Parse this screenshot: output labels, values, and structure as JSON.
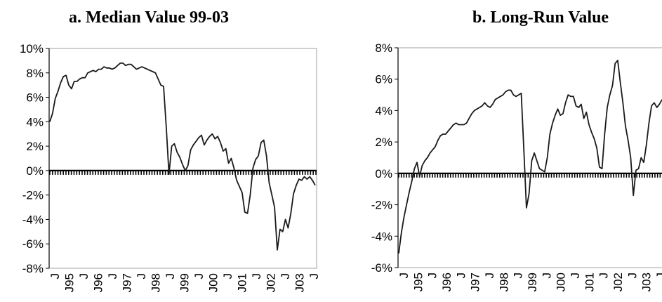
{
  "chart_data": [
    {
      "type": "line",
      "title": "a. Median Value 99-03",
      "xlabel": "",
      "ylabel": "",
      "ylim": [
        -8,
        10
      ],
      "yticks": [
        -8,
        -6,
        -4,
        -2,
        0,
        2,
        4,
        6,
        8,
        10
      ],
      "ytick_labels": [
        "-8%",
        "-6%",
        "-4%",
        "-2%",
        "0%",
        "2%",
        "4%",
        "6%",
        "8%",
        "10%"
      ],
      "xtick_labels": [
        "J",
        "J95",
        "J",
        "J96",
        "J",
        "J97",
        "J",
        "J98",
        "J",
        "J99",
        "J",
        "J00",
        "J",
        "J01",
        "J",
        "J02",
        "J",
        "J03",
        "J"
      ],
      "grid": false,
      "series": [
        {
          "values": [
            4.0,
            4.7,
            5.9,
            6.5,
            7.2,
            7.7,
            7.8,
            7.0,
            6.7,
            7.3,
            7.3,
            7.5,
            7.6,
            7.6,
            8.0,
            8.1,
            8.2,
            8.1,
            8.3,
            8.3,
            8.5,
            8.4,
            8.4,
            8.3,
            8.4,
            8.6,
            8.8,
            8.8,
            8.6,
            8.7,
            8.7,
            8.5,
            8.3,
            8.4,
            8.5,
            8.4,
            8.3,
            8.2,
            8.1,
            8.0,
            7.5,
            7.0,
            6.9,
            3.5,
            -0.3,
            2.0,
            2.2,
            1.5,
            1.1,
            0.5,
            0.0,
            0.4,
            1.7,
            2.1,
            2.4,
            2.7,
            2.9,
            2.1,
            2.5,
            2.8,
            3.0,
            2.6,
            2.8,
            2.3,
            1.6,
            1.8,
            0.6,
            1.0,
            0.2,
            -0.8,
            -1.3,
            -1.8,
            -3.4,
            -3.5,
            -2.0,
            0.2,
            0.9,
            1.2,
            2.3,
            2.5,
            1.2,
            -1.0,
            -2.0,
            -3.0,
            -6.5,
            -4.8,
            -5.0,
            -4.0,
            -4.7,
            -3.5,
            -1.9,
            -1.2,
            -0.7,
            -0.8,
            -0.5,
            -0.7,
            -0.5,
            -0.8,
            -1.2
          ]
        }
      ]
    },
    {
      "type": "line",
      "title": "b. Long-Run Value",
      "xlabel": "",
      "ylabel": "",
      "ylim": [
        -6,
        8
      ],
      "yticks": [
        -6,
        -4,
        -2,
        0,
        2,
        4,
        6,
        8
      ],
      "ytick_labels": [
        "-6%",
        "-4%",
        "-2%",
        "0%",
        "2%",
        "4%",
        "6%",
        "8%"
      ],
      "xtick_labels": [
        "J",
        "J95",
        "J",
        "J96",
        "J",
        "J97",
        "J",
        "J98",
        "J",
        "J99",
        "J",
        "J00",
        "J",
        "J01",
        "J",
        "J02",
        "J",
        "J03",
        "J"
      ],
      "grid": false,
      "series": [
        {
          "values": [
            -5.1,
            -3.8,
            -2.8,
            -2.0,
            -1.2,
            -0.5,
            0.3,
            0.7,
            -0.2,
            0.5,
            0.8,
            1.0,
            1.3,
            1.5,
            1.7,
            2.1,
            2.4,
            2.5,
            2.5,
            2.7,
            2.9,
            3.1,
            3.2,
            3.1,
            3.1,
            3.1,
            3.2,
            3.5,
            3.8,
            4.0,
            4.1,
            4.2,
            4.3,
            4.5,
            4.3,
            4.2,
            4.4,
            4.7,
            4.8,
            4.9,
            5.0,
            5.2,
            5.3,
            5.3,
            5.0,
            4.9,
            5.0,
            5.1,
            1.5,
            -2.2,
            -1.3,
            0.8,
            1.3,
            0.8,
            0.3,
            0.2,
            0.1,
            1.0,
            2.5,
            3.2,
            3.7,
            4.1,
            3.7,
            3.8,
            4.5,
            5.0,
            4.9,
            4.9,
            4.3,
            4.2,
            4.4,
            3.5,
            3.9,
            3.1,
            2.6,
            2.2,
            1.6,
            0.4,
            0.3,
            2.5,
            4.2,
            5.0,
            5.6,
            7.0,
            7.2,
            5.8,
            4.5,
            3.0,
            2.1,
            1.0,
            -1.4,
            0.2,
            0.3,
            1.0,
            0.7,
            1.8,
            3.2,
            4.3,
            4.5,
            4.2,
            4.4,
            4.7
          ]
        }
      ]
    }
  ]
}
